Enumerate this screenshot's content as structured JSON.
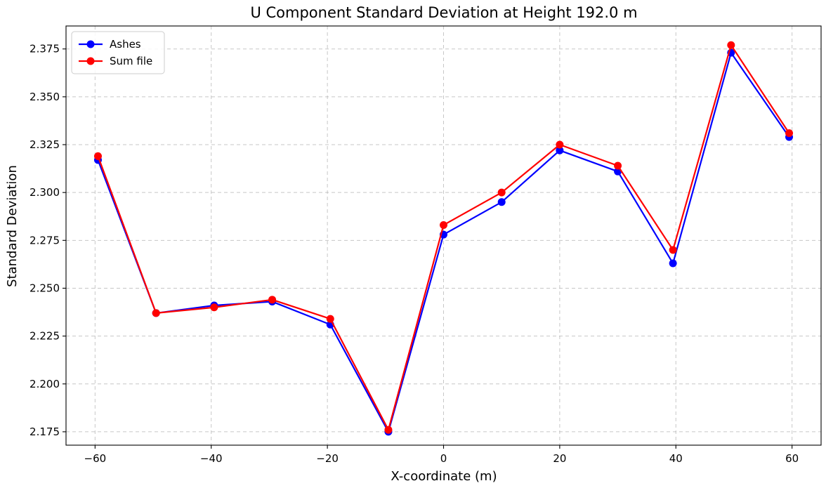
{
  "chart_data": {
    "type": "line",
    "title": "U Component Standard Deviation at Height 192.0 m",
    "xlabel": "X-coordinate (m)",
    "ylabel": "Standard Deviation",
    "xlim": [
      -65,
      65
    ],
    "ylim": [
      2.168,
      2.387
    ],
    "xticks": [
      -60,
      -40,
      -20,
      0,
      20,
      40,
      60
    ],
    "xtick_labels": [
      "−60",
      "−40",
      "−20",
      "0",
      "20",
      "40",
      "60"
    ],
    "yticks": [
      2.175,
      2.2,
      2.225,
      2.25,
      2.275,
      2.3,
      2.325,
      2.35,
      2.375
    ],
    "ytick_labels": [
      "2.175",
      "2.200",
      "2.225",
      "2.250",
      "2.275",
      "2.300",
      "2.325",
      "2.350",
      "2.375"
    ],
    "grid": true,
    "legend_position": "top-left",
    "x": [
      -59.5,
      -49.5,
      -39.5,
      -29.5,
      -19.5,
      -9.5,
      0,
      10,
      20,
      30,
      39.5,
      49.5,
      59.5
    ],
    "series": [
      {
        "name": "Ashes",
        "color": "#0000ff",
        "marker": "circle",
        "values": [
          2.317,
          2.237,
          2.241,
          2.243,
          2.231,
          2.175,
          2.278,
          2.295,
          2.322,
          2.311,
          2.263,
          2.373,
          2.329
        ]
      },
      {
        "name": "Sum file",
        "color": "#ff0000",
        "marker": "circle",
        "values": [
          2.319,
          2.237,
          2.24,
          2.244,
          2.234,
          2.176,
          2.283,
          2.3,
          2.325,
          2.314,
          2.27,
          2.377,
          2.331
        ]
      }
    ]
  }
}
